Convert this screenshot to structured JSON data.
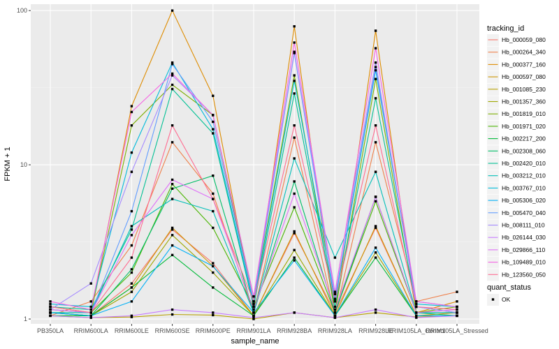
{
  "chart_data": {
    "type": "line",
    "xlabel": "sample_name",
    "ylabel": "FPKM + 1",
    "y_scale": "log10",
    "ylim": [
      0.93,
      110
    ],
    "y_ticks": [
      1,
      10,
      100
    ],
    "y_tick_labels": [
      "1",
      "10",
      "100"
    ],
    "grid": true,
    "legend_placement": "right",
    "categories": [
      "PB350LA",
      "RRIM600LA",
      "RRIM600LE",
      "RRIM600SE",
      "RRIM600PE",
      "RRIM901LA",
      "RRIM928BA",
      "RRIM928LA",
      "RRIM928LE",
      "RRIM105LA_Control",
      "RRIM105LA_Stressed"
    ],
    "x_tick_labels": [
      "PB350LA",
      "RRIM600LA",
      "RRIM600LE",
      "RRIM600SE",
      "RRIM600PE",
      "RRIM901LA",
      "RRIM928BA",
      "RRIM928LA",
      "RRIM928LE",
      "RRIM105LA_Control",
      "RRIM105LA_Stressed"
    ],
    "legend_title": "tracking_id",
    "series": [
      {
        "name": "Hb_000059_080",
        "color": "#F8766D",
        "values": [
          1.1,
          1.05,
          1.7,
          3.8,
          2.3,
          1.05,
          3.6,
          1.1,
          3.9,
          1.05,
          1.05
        ]
      },
      {
        "name": "Hb_000264_340",
        "color": "#EF7F49",
        "values": [
          1.05,
          1.3,
          3.0,
          14.0,
          6.5,
          1.1,
          15.0,
          1.05,
          14.0,
          1.3,
          1.5
        ]
      },
      {
        "name": "Hb_000377_160",
        "color": "#DE8C00",
        "values": [
          1.2,
          1.1,
          24.0,
          100.0,
          28.0,
          1.2,
          79.0,
          1.05,
          74.0,
          1.1,
          1.3
        ]
      },
      {
        "name": "Hb_000597_080",
        "color": "#CD9600",
        "values": [
          1.1,
          1.05,
          1.6,
          3.9,
          2.2,
          1.05,
          3.7,
          1.05,
          4.0,
          1.05,
          1.1
        ]
      },
      {
        "name": "Hb_001085_230",
        "color": "#B79F00",
        "values": [
          1.05,
          1.02,
          1.03,
          1.07,
          1.06,
          1.0,
          1.1,
          1.02,
          1.1,
          1.03,
          1.05
        ]
      },
      {
        "name": "Hb_001357_360",
        "color": "#9DA700",
        "values": [
          1.05,
          1.05,
          1.5,
          3.5,
          2.0,
          1.05,
          2.8,
          1.05,
          2.7,
          1.05,
          1.05
        ]
      },
      {
        "name": "Hb_001819_010",
        "color": "#7CAE00",
        "values": [
          1.15,
          1.1,
          18.0,
          33.0,
          21.0,
          1.3,
          38.0,
          1.1,
          36.0,
          1.1,
          1.2
        ]
      },
      {
        "name": "Hb_001971_020",
        "color": "#49B500",
        "values": [
          1.1,
          1.1,
          2.0,
          7.5,
          3.9,
          1.2,
          5.3,
          1.1,
          5.8,
          1.1,
          1.1
        ]
      },
      {
        "name": "Hb_002217_200",
        "color": "#00BA38",
        "values": [
          1.05,
          1.05,
          1.6,
          2.6,
          1.6,
          1.05,
          2.5,
          1.05,
          2.5,
          1.05,
          1.05
        ]
      },
      {
        "name": "Hb_002308_060",
        "color": "#00BE67",
        "values": [
          1.1,
          1.05,
          2.1,
          7.0,
          8.5,
          1.1,
          7.8,
          1.1,
          6.2,
          1.1,
          1.05
        ]
      },
      {
        "name": "Hb_002420_010",
        "color": "#00C094",
        "values": [
          1.2,
          1.15,
          3.8,
          31.0,
          16.0,
          1.2,
          29.0,
          1.2,
          27.0,
          1.2,
          1.1
        ]
      },
      {
        "name": "Hb_003212_010",
        "color": "#00BFB8",
        "values": [
          1.1,
          1.1,
          4.0,
          6.0,
          5.0,
          1.1,
          11.0,
          2.5,
          9.0,
          1.1,
          1.1
        ]
      },
      {
        "name": "Hb_003767_010",
        "color": "#00BBDA",
        "values": [
          1.25,
          1.2,
          12.0,
          46.0,
          17.0,
          1.25,
          35.0,
          1.3,
          41.0,
          1.25,
          1.2
        ]
      },
      {
        "name": "Hb_005306_020",
        "color": "#00B0F6",
        "values": [
          1.1,
          1.05,
          1.3,
          3.0,
          2.2,
          1.1,
          2.4,
          1.05,
          2.9,
          1.05,
          1.05
        ]
      },
      {
        "name": "Hb_005470_040",
        "color": "#619CFF",
        "values": [
          1.15,
          1.1,
          5.0,
          45.0,
          19.0,
          1.3,
          53.0,
          1.35,
          43.0,
          1.3,
          1.2
        ]
      },
      {
        "name": "Hb_008111_010",
        "color": "#A58AFF",
        "values": [
          1.15,
          1.7,
          9.0,
          38.0,
          21.0,
          1.4,
          54.0,
          1.5,
          46.0,
          1.2,
          1.1
        ]
      },
      {
        "name": "Hb_026144_030",
        "color": "#C77CFF",
        "values": [
          1.05,
          1.02,
          1.05,
          1.15,
          1.1,
          1.02,
          1.1,
          1.02,
          1.15,
          1.02,
          1.05
        ]
      },
      {
        "name": "Hb_029866_110",
        "color": "#DF70F8",
        "values": [
          1.15,
          1.1,
          3.5,
          8.0,
          6.0,
          1.15,
          6.5,
          1.15,
          6.2,
          1.1,
          1.15
        ]
      },
      {
        "name": "Hb_109489_010",
        "color": "#F564E3",
        "values": [
          1.3,
          1.15,
          22.0,
          39.0,
          21.0,
          1.4,
          62.0,
          1.45,
          57.0,
          1.3,
          1.2
        ]
      },
      {
        "name": "Hb_123560_050",
        "color": "#FF6C91",
        "values": [
          1.2,
          1.1,
          2.5,
          18.0,
          6.0,
          1.3,
          18.0,
          1.3,
          18.0,
          1.2,
          1.15
        ]
      }
    ],
    "shape_legend": {
      "title": "quant_status",
      "entries": [
        {
          "label": "OK",
          "shape": "square"
        }
      ]
    }
  }
}
